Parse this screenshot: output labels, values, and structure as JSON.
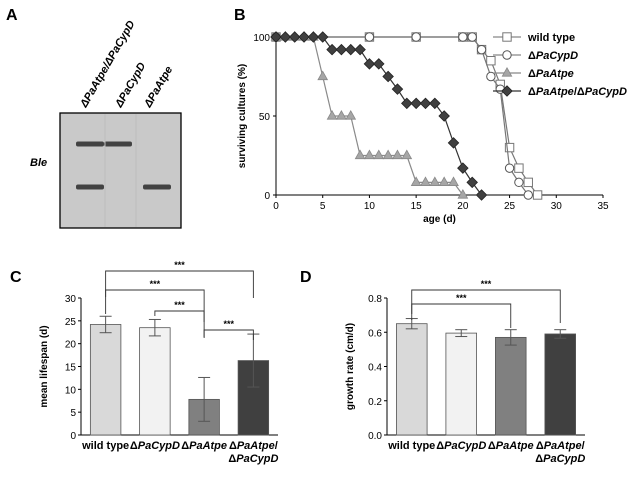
{
  "panel_labels": {
    "a": "A",
    "b": "B",
    "c": "C",
    "d": "D"
  },
  "blot": {
    "lanes": [
      "ΔPaAtpe/ΔPaCypD",
      "ΔPaCypD",
      "ΔPaAtpe"
    ],
    "band_label": "Ble",
    "bands": [
      {
        "lane": 0,
        "level": "upper"
      },
      {
        "lane": 0,
        "level": "lower"
      },
      {
        "lane": 1,
        "level": "upper"
      },
      {
        "lane": 2,
        "level": "lower"
      }
    ]
  },
  "chart_data": [
    {
      "type": "line",
      "panel": "B",
      "xlabel": "age (d)",
      "ylabel": "surviving cultures (%)",
      "xlim": [
        0,
        35
      ],
      "ylim": [
        0,
        100
      ],
      "xticks": [
        0,
        5,
        10,
        15,
        20,
        25,
        30,
        35
      ],
      "yticks": [
        0,
        50,
        100
      ],
      "legend_position": "top-right",
      "series": [
        {
          "name": "wild type",
          "marker": "square",
          "color": "#ffffff",
          "points": [
            [
              0,
              100
            ],
            [
              10,
              100
            ],
            [
              15,
              100
            ],
            [
              20,
              100
            ],
            [
              21,
              100
            ],
            [
              22,
              92
            ],
            [
              23,
              85
            ],
            [
              24,
              70
            ],
            [
              25,
              30
            ],
            [
              26,
              17
            ],
            [
              27,
              8
            ],
            [
              28,
              0
            ]
          ]
        },
        {
          "name": "ΔPaCypD",
          "marker": "circle",
          "color": "#ffffff",
          "points": [
            [
              0,
              100
            ],
            [
              10,
              100
            ],
            [
              15,
              100
            ],
            [
              20,
              100
            ],
            [
              21,
              100
            ],
            [
              22,
              92
            ],
            [
              23,
              75
            ],
            [
              24,
              67
            ],
            [
              25,
              17
            ],
            [
              26,
              8
            ],
            [
              27,
              0
            ]
          ]
        },
        {
          "name": "ΔPaAtpe",
          "marker": "triangle",
          "color": "#a6a6a6",
          "points": [
            [
              0,
              100
            ],
            [
              1,
              100
            ],
            [
              2,
              100
            ],
            [
              3,
              100
            ],
            [
              4,
              100
            ],
            [
              5,
              75
            ],
            [
              6,
              50
            ],
            [
              7,
              50
            ],
            [
              8,
              50
            ],
            [
              9,
              25
            ],
            [
              10,
              25
            ],
            [
              11,
              25
            ],
            [
              12,
              25
            ],
            [
              13,
              25
            ],
            [
              14,
              25
            ],
            [
              15,
              8
            ],
            [
              16,
              8
            ],
            [
              17,
              8
            ],
            [
              18,
              8
            ],
            [
              19,
              8
            ],
            [
              20,
              0
            ]
          ]
        },
        {
          "name": "ΔPaAtpe/ΔPaCypD",
          "marker": "diamond",
          "color": "#404040",
          "points": [
            [
              0,
              100
            ],
            [
              1,
              100
            ],
            [
              2,
              100
            ],
            [
              3,
              100
            ],
            [
              4,
              100
            ],
            [
              5,
              100
            ],
            [
              6,
              92
            ],
            [
              7,
              92
            ],
            [
              8,
              92
            ],
            [
              9,
              92
            ],
            [
              10,
              83
            ],
            [
              11,
              83
            ],
            [
              12,
              75
            ],
            [
              13,
              67
            ],
            [
              14,
              58
            ],
            [
              15,
              58
            ],
            [
              16,
              58
            ],
            [
              17,
              58
            ],
            [
              18,
              50
            ],
            [
              19,
              33
            ],
            [
              20,
              17
            ],
            [
              21,
              8
            ],
            [
              22,
              0
            ]
          ]
        }
      ]
    },
    {
      "type": "bar",
      "panel": "C",
      "ylabel": "mean lifespan (d)",
      "ylim": [
        0,
        30
      ],
      "yticks": [
        0,
        5,
        10,
        15,
        20,
        25,
        30
      ],
      "categories": [
        {
          "line1": "wild type",
          "line2": ""
        },
        {
          "line1": "ΔPaCypD",
          "line2": ""
        },
        {
          "line1": "ΔPaAtpe",
          "line2": ""
        },
        {
          "line1": "ΔPaAtpe/",
          "line2": "ΔPaCypD"
        }
      ],
      "values": [
        24.2,
        23.5,
        7.8,
        16.3
      ],
      "errors": [
        1.8,
        1.8,
        4.8,
        5.8
      ],
      "colors": [
        "#d9d9d9",
        "#f2f2f2",
        "#808080",
        "#404040"
      ],
      "significance": [
        {
          "from": 0,
          "to": 3,
          "label": "***"
        },
        {
          "from": 0,
          "to": 2,
          "label": "***"
        },
        {
          "from": 1,
          "to": 2,
          "label": "***"
        },
        {
          "from": 2,
          "to": 3,
          "label": "***"
        }
      ]
    },
    {
      "type": "bar",
      "panel": "D",
      "ylabel": "growth rate (cm/d)",
      "ylim": [
        0,
        0.8
      ],
      "yticks": [
        "0.0",
        "0.2",
        "0.4",
        "0.6",
        "0.8"
      ],
      "categories": [
        {
          "line1": "wild type",
          "line2": ""
        },
        {
          "line1": "ΔPaCypD",
          "line2": ""
        },
        {
          "line1": "ΔPaAtpe",
          "line2": ""
        },
        {
          "line1": "ΔPaAtpe/",
          "line2": "ΔPaCypD"
        }
      ],
      "values": [
        0.65,
        0.595,
        0.57,
        0.59
      ],
      "errors": [
        0.03,
        0.02,
        0.045,
        0.025
      ],
      "colors": [
        "#d9d9d9",
        "#f2f2f2",
        "#808080",
        "#404040"
      ],
      "significance": [
        {
          "from": 0,
          "to": 3,
          "label": "***"
        },
        {
          "from": 0,
          "to": 2,
          "label": "***"
        }
      ]
    }
  ]
}
